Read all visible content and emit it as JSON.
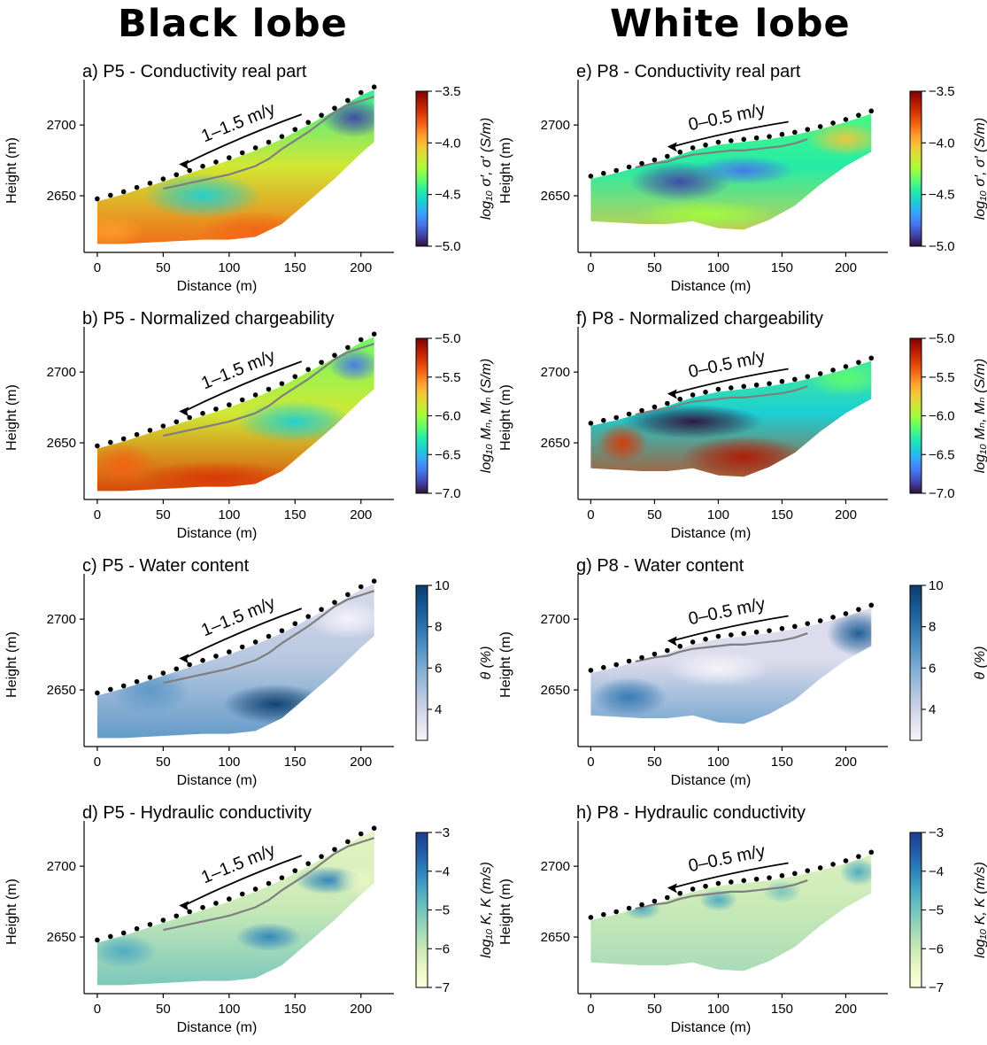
{
  "columns": [
    {
      "title": "Black lobe"
    },
    {
      "title": "White lobe"
    }
  ],
  "colormaps": {
    "turbo": [
      "#30123b",
      "#4145ab",
      "#4675ed",
      "#39a2fc",
      "#1bcfd4",
      "#24eca6",
      "#61fc6c",
      "#a4fc3b",
      "#d1e834",
      "#f3c63a",
      "#fe9b2d",
      "#f36315",
      "#d93806",
      "#b11901",
      "#7a0403"
    ],
    "blues": [
      "#f7f4fb",
      "#dcdcec",
      "#b7c7e0",
      "#8bb3d6",
      "#5b97c6",
      "#3277b0",
      "#175994",
      "#0b3e6f"
    ],
    "ygnbu": [
      "#ffffe0",
      "#eaf6c5",
      "#c8e9b6",
      "#9fd7b9",
      "#74c4bd",
      "#4aa9c2",
      "#2c83bb",
      "#235ca8",
      "#1f3c8c"
    ]
  },
  "chart_data": [
    {
      "id": "a",
      "type": "heatmap",
      "title": "a) P5 - Conductivity real part",
      "profile": "P5",
      "rate_label": "1–1.5 m/y",
      "xlabel": "Distance (m)",
      "ylabel": "Height (m)",
      "xticks": [
        0,
        50,
        100,
        150,
        200
      ],
      "yticks": [
        2650,
        2700
      ],
      "xlim": [
        -10,
        225
      ],
      "ylim": [
        2610,
        2732
      ],
      "colormap": "turbo",
      "colorbar_label": "log₁₀ σ′, σ′ (S/m)",
      "colorbar_ticks": [
        "-3.5",
        "-4.0",
        "-4.5",
        "-5.0"
      ],
      "vmin": -5.0,
      "vmax": -3.5
    },
    {
      "id": "b",
      "type": "heatmap",
      "title": "b) P5 - Normalized chargeability",
      "profile": "P5",
      "rate_label": "1–1.5 m/y",
      "xlabel": "Distance (m)",
      "ylabel": "Height (m)",
      "xticks": [
        0,
        50,
        100,
        150,
        200
      ],
      "yticks": [
        2650,
        2700
      ],
      "xlim": [
        -10,
        225
      ],
      "ylim": [
        2610,
        2732
      ],
      "colormap": "turbo",
      "colorbar_label": "log₁₀ Mₙ, Mₙ (S/m)",
      "colorbar_ticks": [
        "-5.0",
        "-5.5",
        "-6.0",
        "-6.5",
        "-7.0"
      ],
      "vmin": -7.0,
      "vmax": -5.0
    },
    {
      "id": "c",
      "type": "heatmap",
      "title": "c) P5 - Water content",
      "profile": "P5",
      "rate_label": "1–1.5 m/y",
      "xlabel": "Distance (m)",
      "ylabel": "Height (m)",
      "xticks": [
        0,
        50,
        100,
        150,
        200
      ],
      "yticks": [
        2650,
        2700
      ],
      "xlim": [
        -10,
        225
      ],
      "ylim": [
        2610,
        2732
      ],
      "colormap": "blues",
      "colorbar_label": "θ (%)",
      "colorbar_ticks": [
        "10",
        "8",
        "6",
        "4"
      ],
      "vmin": 2.5,
      "vmax": 10
    },
    {
      "id": "d",
      "type": "heatmap",
      "title": "d) P5 - Hydraulic conductivity",
      "profile": "P5",
      "rate_label": "1–1.5 m/y",
      "xlabel": "Distance (m)",
      "ylabel": "Height (m)",
      "xticks": [
        0,
        50,
        100,
        150,
        200
      ],
      "yticks": [
        2650,
        2700
      ],
      "xlim": [
        -10,
        225
      ],
      "ylim": [
        2610,
        2732
      ],
      "colormap": "ygnbu",
      "colorbar_label": "log₁₀ K, K (m/s)",
      "colorbar_ticks": [
        "-3",
        "-4",
        "-5",
        "-6",
        "-7"
      ],
      "vmin": -7,
      "vmax": -3
    },
    {
      "id": "e",
      "type": "heatmap",
      "title": "e) P8 - Conductivity real part",
      "profile": "P8",
      "rate_label": "0–0.5 m/y",
      "xlabel": "Distance (m)",
      "ylabel": "Height (m)",
      "xticks": [
        0,
        50,
        100,
        150,
        200
      ],
      "yticks": [
        2650,
        2700
      ],
      "xlim": [
        -10,
        233
      ],
      "ylim": [
        2610,
        2732
      ],
      "colormap": "turbo",
      "colorbar_label": "log₁₀ σ′, σ′ (S/m)",
      "colorbar_ticks": [
        "-3.5",
        "-4.0",
        "-4.5",
        "-5.0"
      ],
      "vmin": -5.0,
      "vmax": -3.5
    },
    {
      "id": "f",
      "type": "heatmap",
      "title": "f) P8 - Normalized chargeability",
      "profile": "P8",
      "rate_label": "0–0.5 m/y",
      "xlabel": "Distance (m)",
      "ylabel": "Height (m)",
      "xticks": [
        0,
        50,
        100,
        150,
        200
      ],
      "yticks": [
        2650,
        2700
      ],
      "xlim": [
        -10,
        233
      ],
      "ylim": [
        2610,
        2732
      ],
      "colormap": "turbo",
      "colorbar_label": "log₁₀ Mₙ, Mₙ (S/m)",
      "colorbar_ticks": [
        "-5.0",
        "-5.5",
        "-6.0",
        "-6.5",
        "-7.0"
      ],
      "vmin": -7.0,
      "vmax": -5.0
    },
    {
      "id": "g",
      "type": "heatmap",
      "title": "g) P8 - Water content",
      "profile": "P8",
      "rate_label": "0–0.5 m/y",
      "xlabel": "Distance (m)",
      "ylabel": "Height (m)",
      "xticks": [
        0,
        50,
        100,
        150,
        200
      ],
      "yticks": [
        2650,
        2700
      ],
      "xlim": [
        -10,
        233
      ],
      "ylim": [
        2610,
        2732
      ],
      "colormap": "blues",
      "colorbar_label": "θ (%)",
      "colorbar_ticks": [
        "10",
        "8",
        "6",
        "4"
      ],
      "vmin": 2.5,
      "vmax": 10
    },
    {
      "id": "h",
      "type": "heatmap",
      "title": "h) P8 - Hydraulic conductivity",
      "profile": "P8",
      "rate_label": "0–0.5 m/y",
      "xlabel": "Distance (m)",
      "ylabel": "Height (m)",
      "xticks": [
        0,
        50,
        100,
        150,
        200
      ],
      "yticks": [
        2650,
        2700
      ],
      "xlim": [
        -10,
        233
      ],
      "ylim": [
        2610,
        2732
      ],
      "colormap": "ygnbu",
      "colorbar_label": "log₁₀ K, K (m/s)",
      "colorbar_ticks": [
        "-3",
        "-4",
        "-5",
        "-6",
        "-7"
      ],
      "vmin": -7,
      "vmax": -3
    }
  ],
  "profiles": {
    "P5": {
      "surface_x": [
        0,
        20,
        40,
        60,
        80,
        100,
        120,
        140,
        160,
        180,
        200,
        210
      ],
      "surface_y": [
        2646,
        2651,
        2657,
        2663,
        2669,
        2675,
        2682,
        2690,
        2700,
        2710,
        2721,
        2725
      ],
      "bottom_x": [
        0,
        20,
        40,
        60,
        80,
        100,
        120,
        140,
        160,
        180,
        200,
        210
      ],
      "bottom_y": [
        2616,
        2616,
        2617,
        2618,
        2619,
        2619,
        2621,
        2630,
        2646,
        2662,
        2680,
        2688
      ],
      "electrode_x": [
        0,
        10,
        20,
        30,
        40,
        50,
        60,
        70,
        80,
        90,
        100,
        110,
        120,
        130,
        140,
        150,
        160,
        170,
        180,
        190,
        200,
        210
      ],
      "sliding_x": [
        50,
        60,
        70,
        80,
        90,
        100,
        110,
        120,
        130,
        140,
        150,
        160,
        170,
        180,
        190,
        200,
        210
      ],
      "sliding_y": [
        2655,
        2657,
        2659,
        2661,
        2663,
        2665,
        2668,
        2671,
        2676,
        2683,
        2689,
        2695,
        2702,
        2709,
        2714,
        2717,
        2720
      ],
      "arrow_x": [
        155,
        62
      ]
    },
    "P8": {
      "surface_x": [
        0,
        20,
        40,
        60,
        80,
        100,
        120,
        140,
        160,
        180,
        200,
        220
      ],
      "surface_y": [
        2662,
        2666,
        2671,
        2676,
        2682,
        2686,
        2688,
        2690,
        2693,
        2697,
        2702,
        2708
      ],
      "bottom_x": [
        0,
        20,
        40,
        60,
        80,
        100,
        120,
        140,
        160,
        180,
        200,
        220
      ],
      "bottom_y": [
        2632,
        2631,
        2630,
        2630,
        2632,
        2627,
        2626,
        2633,
        2643,
        2658,
        2671,
        2681
      ],
      "electrode_x": [
        0,
        10,
        20,
        30,
        40,
        50,
        60,
        70,
        80,
        90,
        100,
        110,
        120,
        130,
        140,
        150,
        160,
        170,
        180,
        190,
        200,
        210,
        220
      ],
      "sliding_x": [
        35,
        50,
        60,
        70,
        80,
        90,
        100,
        110,
        120,
        130,
        140,
        150,
        160,
        170
      ],
      "sliding_y": [
        2670,
        2673,
        2674,
        2677,
        2679,
        2680,
        2681,
        2682,
        2682,
        2683,
        2684,
        2685,
        2687,
        2690
      ],
      "arrow_x": [
        155,
        60
      ]
    }
  }
}
